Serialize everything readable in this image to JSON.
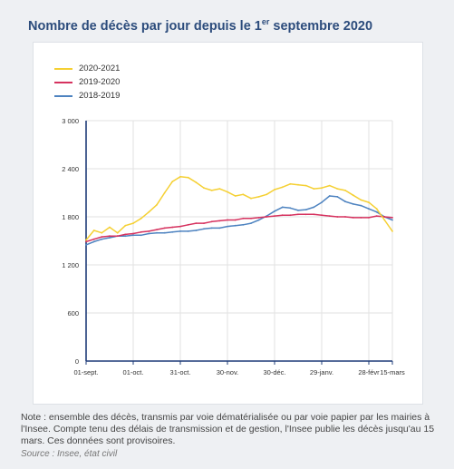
{
  "title": {
    "main": "Nombre de décès par jour depuis le 1",
    "sup": "er",
    "rest": " septembre 2020"
  },
  "note": "Note : ensemble des décès, transmis par voie dématérialisée ou par voie papier par les mairies à l'Insee. Compte tenu des délais de transmission et de gestion, l'Insee publie les décès jusqu'au 15 mars. Ces données sont provisoires.",
  "source": "Source : Insee, état civil",
  "chart_data": {
    "type": "line",
    "title": "Nombre de décès par jour depuis le 1er septembre 2020",
    "ylim": [
      0,
      3000
    ],
    "y_ticks": [
      "3 000",
      "2 400",
      "1 800",
      "1 200",
      "600",
      "0"
    ],
    "x_ticks": [
      {
        "label": "01-sept.",
        "day": 0
      },
      {
        "label": "01-oct.",
        "day": 30
      },
      {
        "label": "31-oct.",
        "day": 60
      },
      {
        "label": "30-nov.",
        "day": 90
      },
      {
        "label": "30-déc.",
        "day": 120
      },
      {
        "label": "29-janv.",
        "day": 150
      },
      {
        "label": "28-févr",
        "day": 180
      },
      {
        "label": "15-mars",
        "day": 195
      }
    ],
    "x_range": [
      0,
      195
    ],
    "grid": true,
    "legend_position": "top-left",
    "series": [
      {
        "name": "2020-2021",
        "color": "#f5d033",
        "days": [
          0,
          5,
          10,
          15,
          20,
          25,
          30,
          35,
          40,
          45,
          50,
          55,
          60,
          65,
          70,
          75,
          80,
          85,
          90,
          95,
          100,
          105,
          110,
          115,
          120,
          125,
          130,
          135,
          140,
          145,
          150,
          155,
          160,
          165,
          170,
          175,
          180,
          185,
          190,
          195
        ],
        "values": [
          1510,
          1630,
          1600,
          1670,
          1600,
          1690,
          1720,
          1780,
          1860,
          1950,
          2100,
          2240,
          2300,
          2290,
          2230,
          2160,
          2130,
          2150,
          2110,
          2060,
          2080,
          2030,
          2050,
          2080,
          2140,
          2170,
          2210,
          2200,
          2190,
          2150,
          2160,
          2190,
          2150,
          2130,
          2070,
          2010,
          1980,
          1900,
          1760,
          1620
        ]
      },
      {
        "name": "2019-2020",
        "color": "#d6325f",
        "days": [
          0,
          5,
          10,
          15,
          20,
          25,
          30,
          35,
          40,
          45,
          50,
          55,
          60,
          65,
          70,
          75,
          80,
          85,
          90,
          95,
          100,
          105,
          110,
          115,
          120,
          125,
          130,
          135,
          140,
          145,
          150,
          155,
          160,
          165,
          170,
          175,
          180,
          185,
          190,
          195
        ],
        "values": [
          1490,
          1520,
          1550,
          1560,
          1560,
          1580,
          1590,
          1610,
          1620,
          1640,
          1660,
          1670,
          1680,
          1700,
          1720,
          1720,
          1740,
          1750,
          1760,
          1760,
          1780,
          1780,
          1790,
          1800,
          1810,
          1820,
          1820,
          1830,
          1830,
          1830,
          1820,
          1810,
          1800,
          1800,
          1790,
          1790,
          1790,
          1810,
          1800,
          1790
        ]
      },
      {
        "name": "2018-2019",
        "color": "#4e83c0",
        "days": [
          0,
          5,
          10,
          15,
          20,
          25,
          30,
          35,
          40,
          45,
          50,
          55,
          60,
          65,
          70,
          75,
          80,
          85,
          90,
          95,
          100,
          105,
          110,
          115,
          120,
          125,
          130,
          135,
          140,
          145,
          150,
          155,
          160,
          165,
          170,
          175,
          180,
          185,
          190,
          195
        ],
        "values": [
          1450,
          1490,
          1520,
          1540,
          1560,
          1560,
          1570,
          1570,
          1590,
          1600,
          1600,
          1610,
          1620,
          1620,
          1630,
          1650,
          1660,
          1660,
          1680,
          1690,
          1700,
          1720,
          1760,
          1810,
          1870,
          1920,
          1910,
          1880,
          1890,
          1920,
          1980,
          2060,
          2050,
          1990,
          1960,
          1940,
          1900,
          1860,
          1800,
          1760
        ]
      }
    ]
  }
}
